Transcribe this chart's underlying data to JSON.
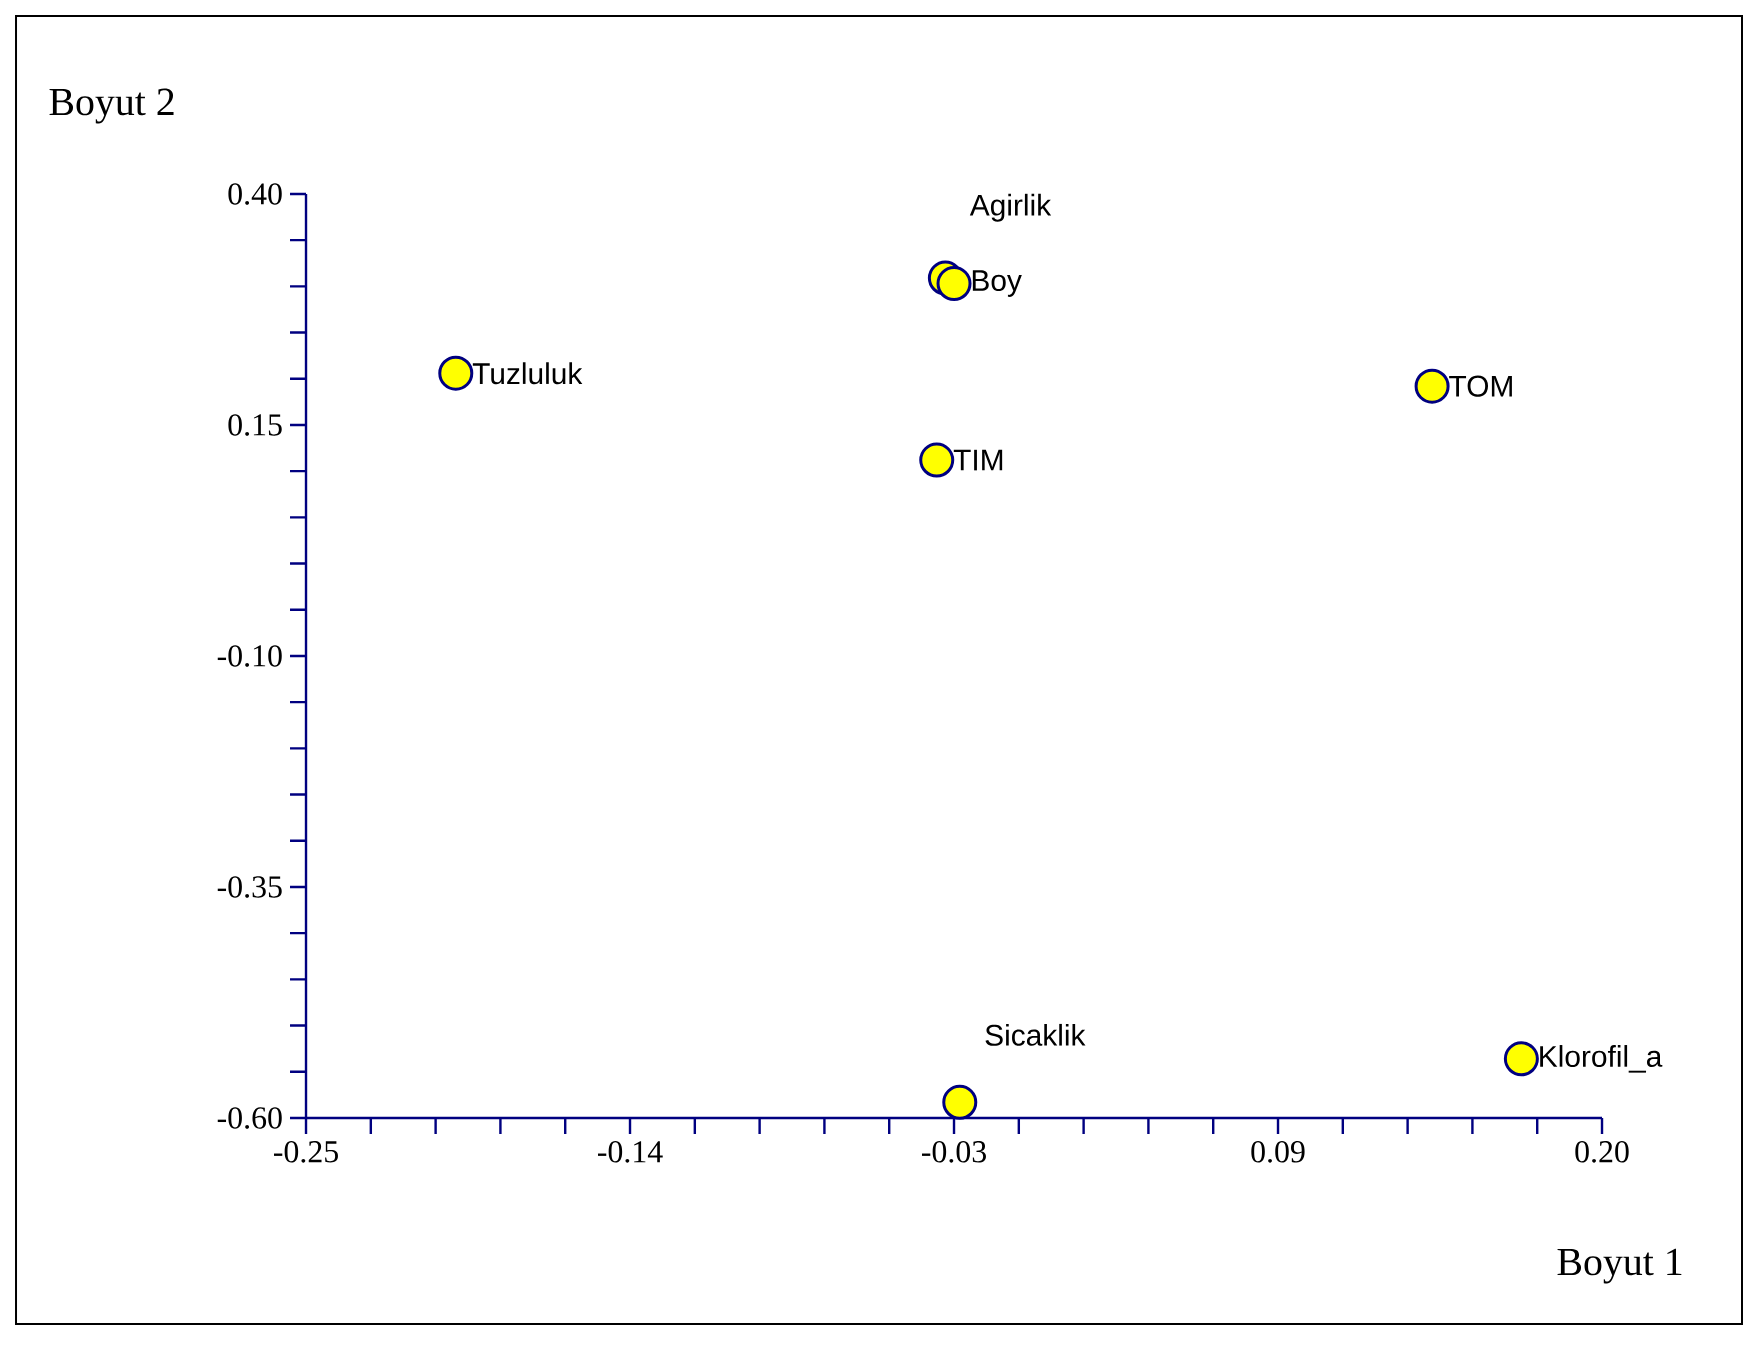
{
  "chart_data": {
    "type": "scatter",
    "xlabel": "Boyut 1",
    "ylabel": "Boyut 2",
    "series": [
      {
        "color": "#ffff00",
        "x": [
          -0.198,
          -0.028,
          -0.025,
          -0.031,
          0.141,
          -0.023,
          0.172
        ],
        "values": [
          0.206,
          0.309,
          0.303,
          0.112,
          0.192,
          -0.583,
          -0.536
        ]
      }
    ],
    "marker": "circle",
    "annotations": [
      {
        "text": "Tuzluluk",
        "x": -0.198,
        "y": 0.206
      },
      {
        "text": "Boy",
        "x": -0.025,
        "y": 0.303
      },
      {
        "text": "Agirlik",
        "x": -0.028,
        "y": 0.309
      },
      {
        "text": "TIM",
        "x": -0.031,
        "y": 0.112
      },
      {
        "text": "TOM",
        "x": 0.141,
        "y": 0.192
      },
      {
        "text": "Sicaklik",
        "x": -0.023,
        "y": -0.583
      },
      {
        "text": "Klorofil_a",
        "x": 0.172,
        "y": -0.536
      }
    ],
    "xlim": [
      -0.25,
      0.2
    ],
    "ylim": [
      -0.6,
      0.4
    ],
    "xticks": [
      {
        "value": -0.25,
        "label": "-0.25"
      },
      {
        "value": -0.1375,
        "label": "-0.14"
      },
      {
        "value": -0.025,
        "label": "-0.03"
      },
      {
        "value": 0.0875,
        "label": "0.09"
      },
      {
        "value": 0.2,
        "label": "0.20"
      }
    ],
    "yticks": [
      {
        "value": -0.6,
        "label": "-0.60"
      },
      {
        "value": -0.35,
        "label": "-0.35"
      },
      {
        "value": -0.1,
        "label": "-0.10"
      },
      {
        "value": 0.15,
        "label": "0.15"
      },
      {
        "value": 0.4,
        "label": "0.40"
      }
    ]
  }
}
